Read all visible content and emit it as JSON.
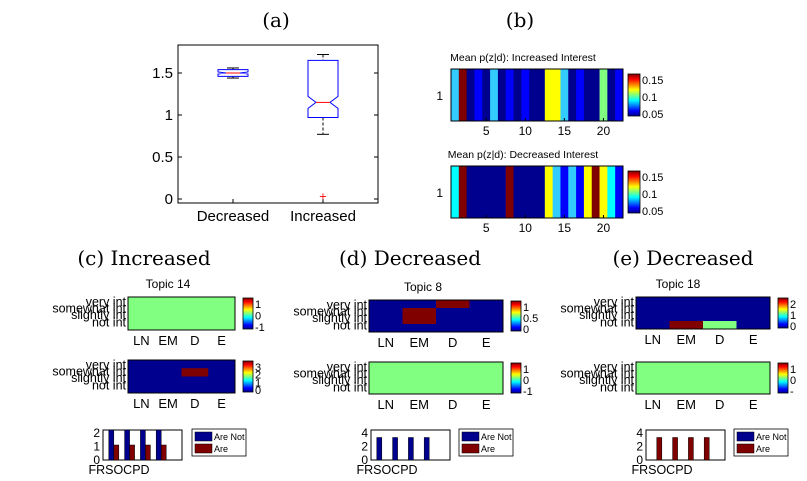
{
  "panels": {
    "a": {
      "label": "(a)"
    },
    "b": {
      "label": "(b)"
    },
    "c": {
      "label": "(c) Increased",
      "topic": "Topic 14"
    },
    "d": {
      "label": "(d) Decreased",
      "topic": "Topic 8"
    },
    "e": {
      "label": "(e) Decreased",
      "topic": "Topic 18"
    }
  },
  "colors": {
    "jet_dark_blue": "#00008f",
    "jet_blue": "#0000ff",
    "jet_cyan": "#00ffff",
    "jet_light_blue": "#33ccff",
    "jet_green": "#80ff80",
    "jet_yellow": "#ffff00",
    "jet_dark_red": "#800000",
    "box_blue": "#0000ff",
    "median_red": "#ff0000",
    "bar_red": "#800000"
  },
  "heat_ylabels": [
    "very int",
    "somewhat int",
    "slightly int",
    "not int"
  ],
  "heat_xlabels": [
    "LN",
    "EM",
    "D",
    "E"
  ],
  "bar_xlabels": [
    "FR",
    "SO",
    "C",
    "PD"
  ],
  "legend": {
    "series1": "Are Not",
    "series2": "Are"
  },
  "chart_data": [
    {
      "id": "a",
      "type": "box",
      "categories": [
        "Decreased",
        "Increased"
      ],
      "yticks": [
        "0",
        "0.5",
        "1",
        "1.5"
      ],
      "ylim": [
        0,
        1.75
      ],
      "boxes": [
        {
          "name": "Decreased",
          "whisker_low": 1.44,
          "q1": 1.46,
          "median": 1.5,
          "q3": 1.54,
          "whisker_high": 1.56,
          "outliers": []
        },
        {
          "name": "Increased",
          "whisker_low": 0.77,
          "q1": 0.97,
          "median": 1.15,
          "q3": 1.65,
          "whisker_high": 1.72,
          "outliers": [
            0.04
          ]
        }
      ]
    },
    {
      "id": "b1",
      "type": "heatmap",
      "title": "Mean p(z|d): Increased Interest",
      "ytick": "1",
      "xticks": [
        "5",
        "10",
        "15",
        "20"
      ],
      "colorbar_ticks": [
        "0.15",
        "0.1",
        "0.05"
      ],
      "cells": [
        "jet_light_blue",
        "jet_dark_red",
        "jet_dark_blue",
        "jet_blue",
        "jet_dark_blue",
        "jet_light_blue",
        "jet_dark_blue",
        "jet_blue",
        "jet_dark_blue",
        "jet_blue",
        "jet_dark_blue",
        "jet_dark_blue",
        "jet_yellow",
        "jet_yellow",
        "jet_light_blue",
        "jet_dark_blue",
        "jet_blue",
        "jet_dark_blue",
        "jet_dark_blue",
        "jet_green",
        "jet_dark_blue",
        "jet_blue"
      ]
    },
    {
      "id": "b2",
      "type": "heatmap",
      "title": "Mean p(z|d): Decreased Interest",
      "ytick": "1",
      "xticks": [
        "5",
        "10",
        "15",
        "20"
      ],
      "colorbar_ticks": [
        "0.15",
        "0.1",
        "0.05"
      ],
      "cells": [
        "jet_cyan",
        "jet_dark_red",
        "jet_dark_blue",
        "jet_dark_blue",
        "jet_dark_blue",
        "jet_dark_blue",
        "jet_dark_blue",
        "jet_dark_red",
        "jet_dark_blue",
        "jet_dark_blue",
        "jet_dark_blue",
        "jet_dark_blue",
        "jet_yellow",
        "jet_light_blue",
        "jet_blue",
        "jet_light_blue",
        "jet_blue",
        "jet_yellow",
        "jet_dark_red",
        "jet_yellow",
        "jet_cyan",
        "jet_blue"
      ]
    },
    {
      "id": "c1",
      "type": "heatmap",
      "colorbar_ticks": [
        "1",
        "0",
        "-1"
      ],
      "grid": [
        [
          "jet_green",
          "jet_green",
          "jet_green",
          "jet_green"
        ],
        [
          "jet_green",
          "jet_green",
          "jet_green",
          "jet_green"
        ],
        [
          "jet_green",
          "jet_green",
          "jet_green",
          "jet_green"
        ],
        [
          "jet_green",
          "jet_green",
          "jet_green",
          "jet_green"
        ]
      ]
    },
    {
      "id": "c2",
      "type": "heatmap",
      "colorbar_ticks": [
        "3",
        "2",
        "1",
        "0"
      ],
      "grid": [
        [
          "jet_dark_blue",
          "jet_dark_blue",
          "jet_dark_blue",
          "jet_dark_blue"
        ],
        [
          "jet_dark_blue",
          "jet_dark_blue",
          "jet_dark_red",
          "jet_dark_blue"
        ],
        [
          "jet_dark_blue",
          "jet_dark_blue",
          "jet_dark_blue",
          "jet_dark_blue"
        ],
        [
          "jet_dark_blue",
          "jet_dark_blue",
          "jet_dark_blue",
          "jet_dark_blue"
        ]
      ]
    },
    {
      "id": "c3",
      "type": "bar",
      "yticks": [
        "2",
        "1",
        "0"
      ],
      "ylim": [
        0,
        2
      ],
      "categories": [
        "FR",
        "SO",
        "C",
        "PD"
      ],
      "series": [
        {
          "name": "Are Not",
          "values": [
            2,
            2,
            2,
            2
          ]
        },
        {
          "name": "Are",
          "values": [
            1,
            1,
            1,
            1
          ]
        }
      ]
    },
    {
      "id": "d1",
      "type": "heatmap",
      "colorbar_ticks": [
        "1",
        "0.5",
        "0"
      ],
      "grid": [
        [
          "jet_dark_blue",
          "jet_dark_blue",
          "jet_dark_red",
          "jet_dark_blue"
        ],
        [
          "jet_dark_blue",
          "jet_dark_red",
          "jet_dark_blue",
          "jet_dark_blue"
        ],
        [
          "jet_dark_blue",
          "jet_dark_red",
          "jet_dark_blue",
          "jet_dark_blue"
        ],
        [
          "jet_dark_blue",
          "jet_dark_blue",
          "jet_dark_blue",
          "jet_dark_blue"
        ]
      ]
    },
    {
      "id": "d2",
      "type": "heatmap",
      "colorbar_ticks": [
        "1",
        "0",
        "-1"
      ],
      "grid": [
        [
          "jet_green",
          "jet_green",
          "jet_green",
          "jet_green"
        ],
        [
          "jet_green",
          "jet_green",
          "jet_green",
          "jet_green"
        ],
        [
          "jet_green",
          "jet_green",
          "jet_green",
          "jet_green"
        ],
        [
          "jet_green",
          "jet_green",
          "jet_green",
          "jet_green"
        ]
      ]
    },
    {
      "id": "d3",
      "type": "bar",
      "yticks": [
        "4",
        "2",
        "0"
      ],
      "ylim": [
        0,
        4
      ],
      "categories": [
        "FR",
        "SO",
        "C",
        "PD"
      ],
      "series": [
        {
          "name": "Are Not",
          "values": [
            3,
            3,
            3,
            3
          ]
        },
        {
          "name": "Are",
          "values": [
            0,
            0,
            0,
            0
          ]
        }
      ]
    },
    {
      "id": "e1",
      "type": "heatmap",
      "colorbar_ticks": [
        "2",
        "1",
        "0"
      ],
      "grid": [
        [
          "jet_dark_blue",
          "jet_dark_blue",
          "jet_dark_blue",
          "jet_dark_blue"
        ],
        [
          "jet_dark_blue",
          "jet_dark_blue",
          "jet_dark_blue",
          "jet_dark_blue"
        ],
        [
          "jet_dark_blue",
          "jet_dark_blue",
          "jet_dark_blue",
          "jet_dark_blue"
        ],
        [
          "jet_dark_blue",
          "jet_dark_red",
          "jet_green",
          "jet_dark_blue"
        ]
      ]
    },
    {
      "id": "e2",
      "type": "heatmap",
      "colorbar_ticks": [
        "1",
        "0",
        "-"
      ],
      "grid": [
        [
          "jet_green",
          "jet_green",
          "jet_green",
          "jet_green"
        ],
        [
          "jet_green",
          "jet_green",
          "jet_green",
          "jet_green"
        ],
        [
          "jet_green",
          "jet_green",
          "jet_green",
          "jet_green"
        ],
        [
          "jet_green",
          "jet_green",
          "jet_green",
          "jet_green"
        ]
      ]
    },
    {
      "id": "e3",
      "type": "bar",
      "yticks": [
        "4",
        "2",
        "0"
      ],
      "ylim": [
        0,
        4
      ],
      "categories": [
        "FR",
        "SO",
        "C",
        "PD"
      ],
      "series": [
        {
          "name": "Are Not",
          "values": [
            0,
            0,
            0,
            0
          ]
        },
        {
          "name": "Are",
          "values": [
            3,
            3,
            3,
            3
          ]
        }
      ]
    }
  ]
}
